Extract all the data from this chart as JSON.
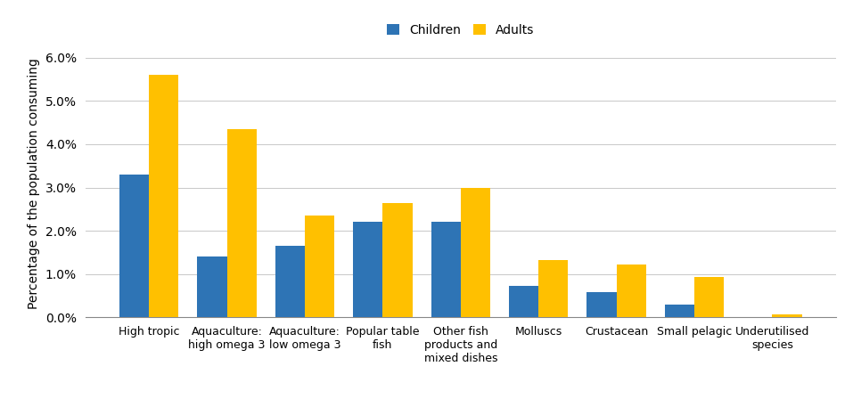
{
  "categories": [
    "High tropic",
    "Aquaculture:\nhigh omega 3",
    "Aquaculture:\nlow omega 3",
    "Popular table\nfish",
    "Other fish\nproducts and\nmixed dishes",
    "Molluscs",
    "Crustacean",
    "Small pelagic",
    "Underutilised\nspecies"
  ],
  "children_values": [
    3.3,
    1.4,
    1.65,
    2.2,
    2.2,
    0.72,
    0.58,
    0.3,
    0.0
  ],
  "adults_values": [
    5.6,
    4.35,
    2.35,
    2.65,
    3.0,
    1.32,
    1.22,
    0.93,
    0.08
  ],
  "children_color": "#2e74b5",
  "adults_color": "#ffc000",
  "ylabel": "Percentage of the population consuming",
  "ylim": [
    0,
    6.2
  ],
  "yticks": [
    0.0,
    1.0,
    2.0,
    3.0,
    4.0,
    5.0,
    6.0
  ],
  "legend_labels": [
    "Children",
    "Adults"
  ],
  "bar_width": 0.38,
  "figsize": [
    9.57,
    4.57
  ],
  "dpi": 100,
  "background_color": "#ffffff",
  "grid_color": "#c8c8c8"
}
